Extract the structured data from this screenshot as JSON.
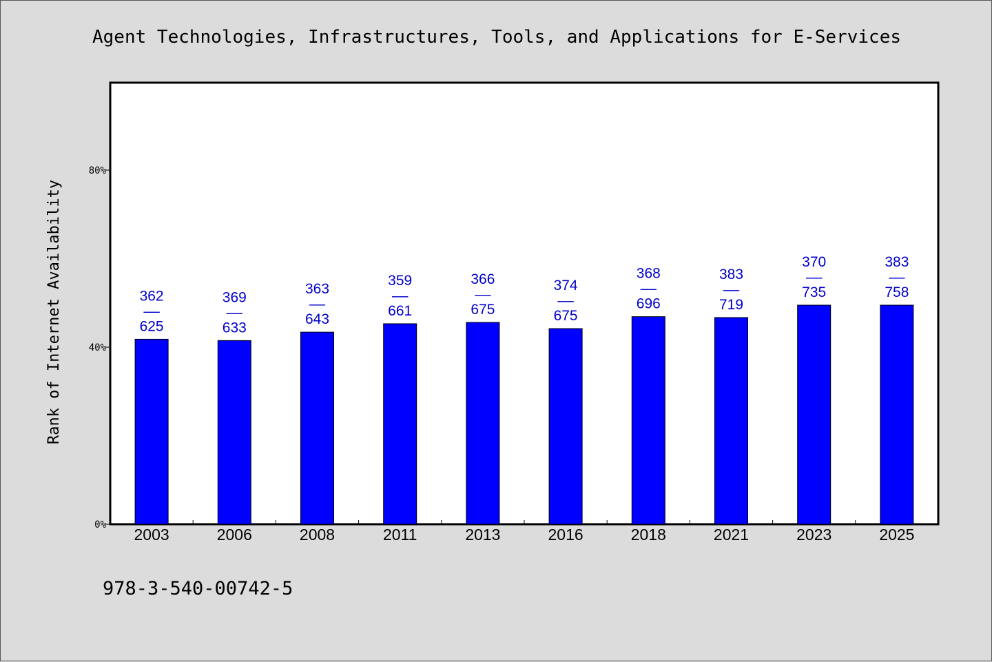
{
  "footer_text": "978-3-540-00742-5",
  "colors": {
    "bar": "#0000ff",
    "label": "#0000cc",
    "background": "#dcdcdc",
    "plot": "#ffffff"
  },
  "chart_data": {
    "type": "bar",
    "title": "Agent Technologies, Infrastructures, Tools, and Applications for E-Services",
    "ylabel": "Rank of Internet Availability",
    "xlabel": "",
    "ylim": [
      0,
      100
    ],
    "yticks": [
      {
        "value": 0,
        "label": "0%"
      },
      {
        "value": 40,
        "label": "40%"
      },
      {
        "value": 80,
        "label": "80%"
      }
    ],
    "categories": [
      "2003",
      "2006",
      "2008",
      "2011",
      "2013",
      "2016",
      "2018",
      "2021",
      "2023",
      "2025"
    ],
    "values": [
      41.8,
      41.5,
      43.4,
      45.3,
      45.6,
      44.2,
      46.9,
      46.7,
      49.5,
      49.5
    ],
    "annotations": [
      [
        "362",
        "––",
        "625"
      ],
      [
        "369",
        "––",
        "633"
      ],
      [
        "363",
        "––",
        "643"
      ],
      [
        "359",
        "––",
        "661"
      ],
      [
        "366",
        "––",
        "675"
      ],
      [
        "374",
        "––",
        "675"
      ],
      [
        "368",
        "––",
        "696"
      ],
      [
        "383",
        "––",
        "719"
      ],
      [
        "370",
        "––",
        "735"
      ],
      [
        "383",
        "––",
        "758"
      ]
    ],
    "grid": false,
    "legend": "none"
  }
}
